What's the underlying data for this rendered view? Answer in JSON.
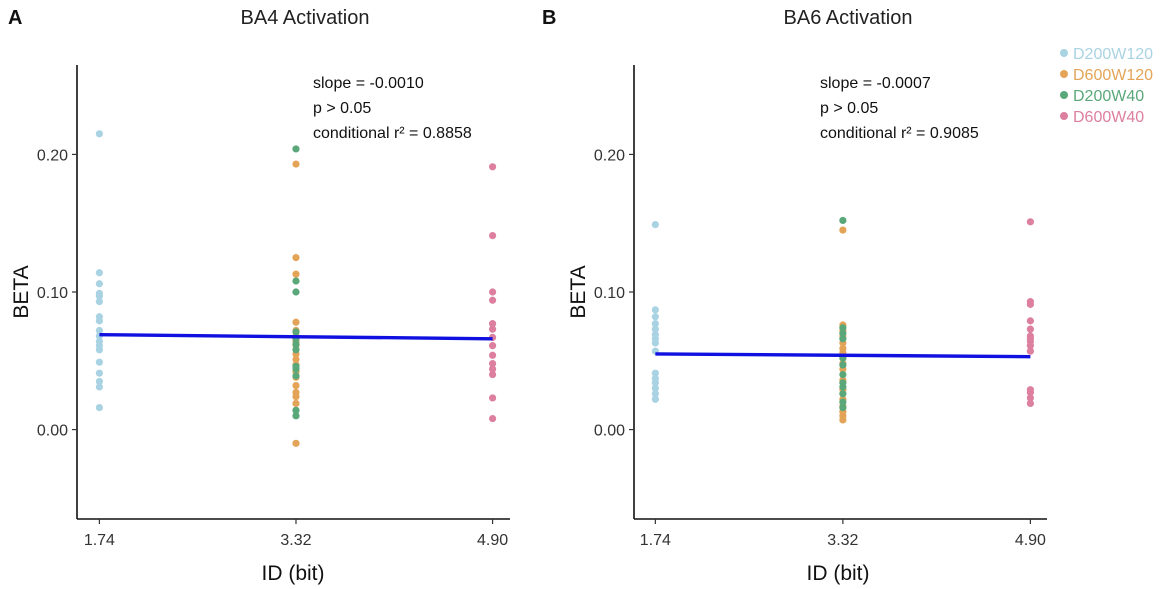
{
  "chart_data": [
    {
      "panel_label": "A",
      "type": "scatter",
      "title": "BA4 Activation",
      "xlabel": "ID (bit)",
      "ylabel": "BETA",
      "x_ticks": [
        {
          "value": 1.74,
          "label": "1.74"
        },
        {
          "value": 3.32,
          "label": "3.32"
        },
        {
          "value": 4.9,
          "label": "4.90"
        }
      ],
      "y_ticks": [
        {
          "value": 0.0,
          "label": "0.00"
        },
        {
          "value": 0.1,
          "label": "0.10"
        },
        {
          "value": 0.2,
          "label": "0.20"
        }
      ],
      "xlim": [
        1.56,
        5.04
      ],
      "ylim": [
        -0.065,
        0.265
      ],
      "annotations": [
        "slope = -0.0010",
        "p > 0.05",
        "conditional r² = 0.8858"
      ],
      "fit_line": {
        "x": [
          1.74,
          4.9
        ],
        "y": [
          0.069,
          0.066
        ],
        "color": "#1010e0"
      },
      "series": [
        {
          "name": "D200W120",
          "color": "#a9d3e3",
          "x": 1.74,
          "values": [
            0.215,
            0.114,
            0.106,
            0.099,
            0.097,
            0.093,
            0.082,
            0.079,
            0.072,
            0.068,
            0.064,
            0.061,
            0.058,
            0.049,
            0.041,
            0.035,
            0.031,
            0.016
          ]
        },
        {
          "name": "D600W120",
          "color": "#e4a458",
          "x": 3.32,
          "values": [
            0.193,
            0.125,
            0.113,
            0.078,
            0.072,
            0.068,
            0.064,
            0.061,
            0.055,
            0.051,
            0.047,
            0.042,
            0.038,
            0.032,
            0.027,
            0.024,
            0.019,
            -0.01
          ]
        },
        {
          "name": "D200W40",
          "color": "#5aa77a",
          "x": 3.32,
          "values": [
            0.204,
            0.108,
            0.1,
            0.071,
            0.066,
            0.062,
            0.058,
            0.046,
            0.044,
            0.039,
            0.014,
            0.01
          ]
        },
        {
          "name": "D600W40",
          "color": "#dd7f9e",
          "x": 4.9,
          "values": [
            0.191,
            0.141,
            0.1,
            0.094,
            0.077,
            0.073,
            0.067,
            0.061,
            0.054,
            0.048,
            0.044,
            0.04,
            0.023,
            0.008
          ]
        }
      ]
    },
    {
      "panel_label": "B",
      "type": "scatter",
      "title": "BA6 Activation",
      "xlabel": "ID (bit)",
      "ylabel": "BETA",
      "x_ticks": [
        {
          "value": 1.74,
          "label": "1.74"
        },
        {
          "value": 3.32,
          "label": "3.32"
        },
        {
          "value": 4.9,
          "label": "4.90"
        }
      ],
      "y_ticks": [
        {
          "value": 0.0,
          "label": "0.00"
        },
        {
          "value": 0.1,
          "label": "0.10"
        },
        {
          "value": 0.2,
          "label": "0.20"
        }
      ],
      "xlim": [
        1.56,
        5.04
      ],
      "ylim": [
        -0.065,
        0.265
      ],
      "annotations": [
        "slope = -0.0007",
        "p > 0.05",
        "conditional r² = 0.9085"
      ],
      "fit_line": {
        "x": [
          1.74,
          4.9
        ],
        "y": [
          0.055,
          0.053
        ],
        "color": "#1010e0"
      },
      "series": [
        {
          "name": "D200W120",
          "color": "#a9d3e3",
          "x": 1.74,
          "values": [
            0.149,
            0.087,
            0.082,
            0.077,
            0.073,
            0.069,
            0.066,
            0.063,
            0.057,
            0.041,
            0.037,
            0.034,
            0.03,
            0.026,
            0.022
          ]
        },
        {
          "name": "D600W120",
          "color": "#e4a458",
          "x": 3.32,
          "values": [
            0.145,
            0.076,
            0.072,
            0.068,
            0.063,
            0.059,
            0.056,
            0.052,
            0.048,
            0.044,
            0.036,
            0.029,
            0.022,
            0.017,
            0.013,
            0.01,
            0.007
          ]
        },
        {
          "name": "D200W40",
          "color": "#5aa77a",
          "x": 3.32,
          "values": [
            0.152,
            0.074,
            0.07,
            0.066,
            0.052,
            0.047,
            0.04,
            0.034,
            0.031,
            0.026,
            0.02,
            0.016
          ]
        },
        {
          "name": "D600W40",
          "color": "#dd7f9e",
          "x": 4.9,
          "values": [
            0.151,
            0.093,
            0.091,
            0.079,
            0.073,
            0.068,
            0.066,
            0.064,
            0.061,
            0.057,
            0.029,
            0.027,
            0.023,
            0.019
          ]
        }
      ]
    }
  ],
  "legend": {
    "items": [
      {
        "label": "D200W120",
        "color": "#a9d3e3"
      },
      {
        "label": "D600W120",
        "color": "#e4a458"
      },
      {
        "label": "D200W40",
        "color": "#5aa77a"
      },
      {
        "label": "D600W40",
        "color": "#dd7f9e"
      }
    ]
  }
}
